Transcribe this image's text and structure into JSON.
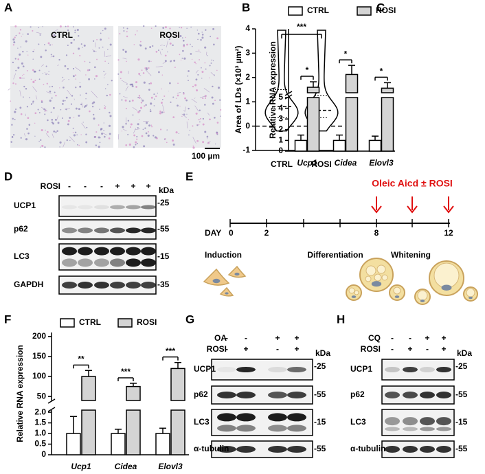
{
  "panels": {
    "A": {
      "label": "A",
      "images": [
        "CTRL",
        "ROSI"
      ],
      "scale_bar": "100 µm"
    },
    "D": {
      "label": "D",
      "kda": "kDa",
      "treatments": [
        {
          "name": "ROSI",
          "signs": [
            "-",
            "-",
            "-",
            "+",
            "+",
            "+"
          ]
        }
      ],
      "rows": [
        {
          "name": "UCP1",
          "marker": "-25"
        },
        {
          "name": "p62",
          "marker": "-55"
        },
        {
          "name": "LC3",
          "marker": "-15"
        },
        {
          "name": "GAPDH",
          "marker": "-35"
        }
      ]
    },
    "E": {
      "label": "E",
      "title": "Oleic Aicd ± ROSI",
      "axis_label": "DAY",
      "days": [
        "0",
        "2",
        "8",
        "12"
      ],
      "phases": [
        "Induction",
        "Differentiation",
        "Whitening"
      ]
    },
    "G": {
      "label": "G",
      "kda": "kDa",
      "treatments": [
        {
          "name": "OA",
          "signs": [
            "-",
            "-",
            "+",
            "+"
          ]
        },
        {
          "name": "ROSI",
          "signs": [
            "-",
            "+",
            "-",
            "+"
          ]
        }
      ],
      "rows": [
        {
          "name": "UCP1",
          "marker": "-25"
        },
        {
          "name": "p62",
          "marker": "-55"
        },
        {
          "name": "LC3",
          "marker": "-15"
        },
        {
          "name": "α-tubulin",
          "marker": "-55"
        }
      ]
    },
    "H": {
      "label": "H",
      "kda": "kDa",
      "treatments": [
        {
          "name": "CQ",
          "signs": [
            "-",
            "-",
            "+",
            "+"
          ]
        },
        {
          "name": "ROSI",
          "signs": [
            "-",
            "+",
            "-",
            "+"
          ]
        }
      ],
      "rows": [
        {
          "name": "UCP1",
          "marker": "-25"
        },
        {
          "name": "p62",
          "marker": "-55"
        },
        {
          "name": "LC3",
          "marker": "-15"
        },
        {
          "name": "α-tubulin",
          "marker": "-55"
        }
      ]
    }
  },
  "chart_data": [
    {
      "type": "violin",
      "panel": "B",
      "ylabel": "Area of LDs (×10³ µm²)",
      "categories": [
        "CTRL",
        "ROSI"
      ],
      "values": [
        0.8,
        0.65
      ],
      "q1": [
        0.35,
        0.35
      ],
      "q3": [
        1.5,
        1.25
      ],
      "hline": 0,
      "ylim": [
        -1,
        4
      ],
      "yticks": [
        -1,
        0,
        1,
        2,
        3,
        4
      ],
      "significance": "***",
      "color": "#ffffff"
    },
    {
      "type": "bar",
      "panel": "C",
      "ylabel": "Relative RNA expression",
      "categories": [
        "Ucp1",
        "Cidea",
        "Elovl3"
      ],
      "series": [
        {
          "name": "CTRL",
          "color": "#ffffff",
          "values": [
            1.0,
            1.0,
            1.0
          ],
          "errors": [
            0.5,
            0.5,
            0.4
          ]
        },
        {
          "name": "ROSI",
          "color": "#d4d4d4",
          "values": [
            8,
            15,
            7.5
          ],
          "errors": [
            3,
            5,
            3
          ]
        }
      ],
      "segments": [
        {
          "ylim": [
            0,
            5
          ],
          "yticks": [
            0,
            1,
            2,
            3,
            4,
            5
          ]
        },
        {
          "ylim": [
            5,
            40
          ]
        }
      ],
      "significance": [
        "*",
        "*",
        "*"
      ]
    },
    {
      "type": "bar",
      "panel": "F",
      "ylabel": "Relative RNA expression",
      "categories": [
        "Ucp1",
        "Cidea",
        "Elovl3"
      ],
      "series": [
        {
          "name": "CTRL",
          "color": "#ffffff",
          "values": [
            1.0,
            1.0,
            1.0
          ],
          "errors": [
            0.8,
            0.2,
            0.25
          ]
        },
        {
          "name": "ROSI",
          "color": "#d4d4d4",
          "values": [
            100,
            75,
            120
          ],
          "errors": [
            15,
            8,
            15
          ]
        }
      ],
      "segments": [
        {
          "ylim": [
            0,
            2.1
          ],
          "yticks": [
            0,
            {
              "value": 0.5,
              "label": "0.5"
            },
            {
              "value": 1,
              "label": "1.0"
            },
            {
              "value": 1.5,
              "label": "1.5"
            },
            {
              "value": 2,
              "label": "2.0"
            }
          ]
        },
        {
          "ylim": [
            40,
            210
          ],
          "yticks": [
            50,
            100,
            150,
            200
          ]
        }
      ],
      "significance": [
        "**",
        "***",
        "***"
      ]
    }
  ]
}
